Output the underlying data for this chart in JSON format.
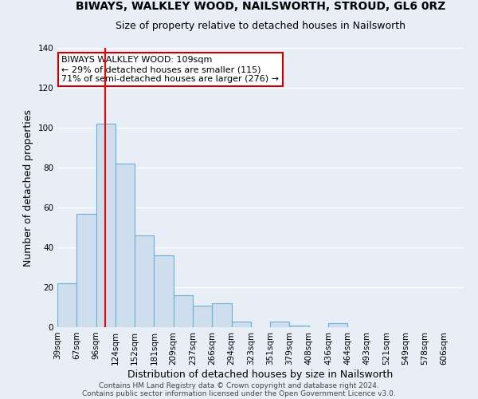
{
  "title": "BIWAYS, WALKLEY WOOD, NAILSWORTH, STROUD, GL6 0RZ",
  "subtitle": "Size of property relative to detached houses in Nailsworth",
  "xlabel": "Distribution of detached houses by size in Nailsworth",
  "ylabel": "Number of detached properties",
  "bar_values": [
    22,
    57,
    102,
    82,
    46,
    36,
    16,
    11,
    12,
    3,
    0,
    3,
    1,
    0,
    2
  ],
  "x_labels": [
    "39sqm",
    "67sqm",
    "96sqm",
    "124sqm",
    "152sqm",
    "181sqm",
    "209sqm",
    "237sqm",
    "266sqm",
    "294sqm",
    "323sqm",
    "351sqm",
    "379sqm",
    "408sqm",
    "436sqm",
    "464sqm",
    "493sqm",
    "521sqm",
    "549sqm",
    "578sqm",
    "606sqm"
  ],
  "bar_color": "#cfdeed",
  "bar_edge_color": "#6aafd6",
  "red_line_x": 109,
  "ylim": [
    0,
    140
  ],
  "yticks": [
    0,
    20,
    40,
    60,
    80,
    100,
    120,
    140
  ],
  "annotation_text": "BIWAYS WALKLEY WOOD: 109sqm\n← 29% of detached houses are smaller (115)\n71% of semi-detached houses are larger (276) →",
  "annotation_box_color": "#ffffff",
  "annotation_box_edge_color": "#cc0000",
  "footer_line1": "Contains HM Land Registry data © Crown copyright and database right 2024.",
  "footer_line2": "Contains public sector information licensed under the Open Government Licence v3.0.",
  "background_color": "#e8eef5",
  "grid_color": "#ffffff",
  "title_fontsize": 10,
  "subtitle_fontsize": 9,
  "axis_label_fontsize": 9,
  "tick_fontsize": 7.5
}
